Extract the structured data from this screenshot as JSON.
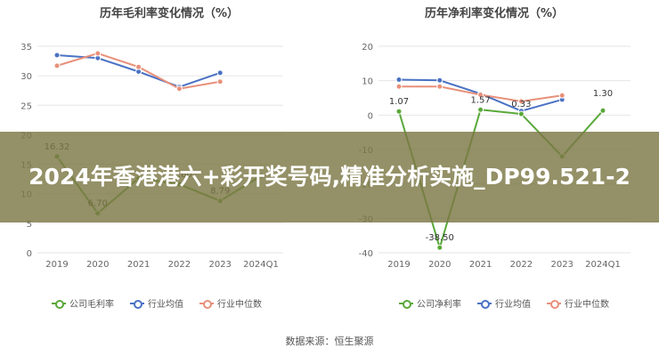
{
  "chart_data": [
    {
      "type": "line",
      "title": "历年毛利率变化情况（%）",
      "categories": [
        "2019",
        "2020",
        "2021",
        "2022",
        "2023",
        "2024Q1"
      ],
      "ylim": [
        0,
        35
      ],
      "yticks": [
        0,
        5,
        10,
        15,
        20,
        25,
        30,
        35
      ],
      "series": [
        {
          "name": "公司毛利率",
          "color": "#5aa83a",
          "values": [
            16.32,
            6.7,
            12.6,
            11.6,
            8.79,
            13.0
          ],
          "labels": [
            "16.32",
            "6.70",
            "",
            "11.60",
            "8.79",
            ""
          ]
        },
        {
          "name": "行业均值",
          "color": "#4a72c4",
          "values": [
            33.5,
            33.0,
            30.7,
            28.1,
            30.5,
            null
          ],
          "labels": [
            "",
            "",
            "",
            "",
            "",
            ""
          ]
        },
        {
          "name": "行业中位数",
          "color": "#e8907a",
          "values": [
            31.7,
            33.8,
            31.5,
            27.8,
            29.0,
            null
          ],
          "labels": [
            "",
            "",
            "",
            "",
            "",
            ""
          ]
        }
      ],
      "grid": true,
      "legend": "bottom"
    },
    {
      "type": "line",
      "title": "历年净利率变化情况（%）",
      "categories": [
        "2019",
        "2020",
        "2021",
        "2022",
        "2023",
        "2024Q1"
      ],
      "ylim": [
        -40,
        20
      ],
      "yticks": [
        -40,
        -30,
        -20,
        -10,
        0,
        10,
        20
      ],
      "series": [
        {
          "name": "公司净利率",
          "color": "#5aa83a",
          "values": [
            1.07,
            -38.5,
            1.57,
            0.33,
            -12.0,
            1.3
          ],
          "labels": [
            "1.07",
            "-38.50",
            "1.57",
            "0.33",
            "",
            ""
          ]
        },
        {
          "name": "行业均值",
          "color": "#4a72c4",
          "values": [
            10.3,
            10.1,
            6.2,
            1.2,
            4.5,
            null
          ],
          "labels": [
            "",
            "",
            "",
            "",
            "",
            ""
          ]
        },
        {
          "name": "行业中位数",
          "color": "#e8907a",
          "values": [
            8.3,
            8.3,
            5.9,
            4.0,
            5.7,
            null
          ],
          "labels": [
            "",
            "",
            "",
            "",
            "",
            ""
          ]
        }
      ],
      "extra_labels": [
        {
          "x": "2024Q1",
          "text": "1.30"
        }
      ],
      "grid": true,
      "legend": "bottom"
    }
  ],
  "source": "数据来源：恒生聚源",
  "banner": "2024年香港港六+彩开奖号码,精准分析实施_DP99.521-2"
}
